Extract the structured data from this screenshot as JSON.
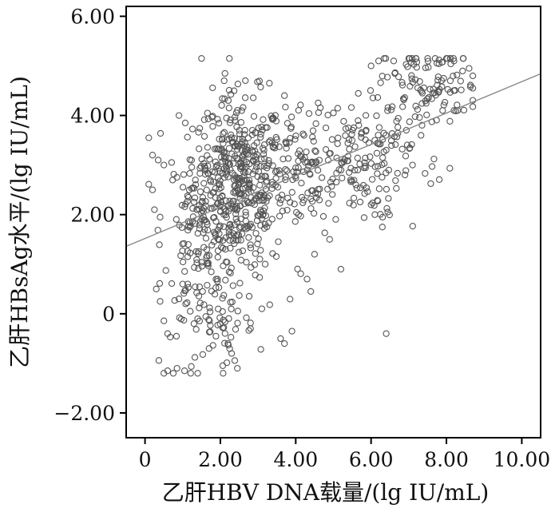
{
  "chart_data": {
    "type": "scatter",
    "title": "",
    "xlabel": "乙肝HBV DNA载量/(lg IU/mL)",
    "ylabel": "乙肝HBsAg水平/(lg IU/mL)",
    "xlim": [
      -0.5,
      10.5
    ],
    "ylim": [
      -2.5,
      6.2
    ],
    "x_ticks": [
      0,
      2,
      4,
      6,
      8,
      10
    ],
    "x_tick_labels": [
      "0",
      "2.00",
      "4.00",
      "6.00",
      "8.00",
      "10.00"
    ],
    "y_ticks": [
      -2,
      0,
      2,
      4,
      6
    ],
    "y_tick_labels": [
      "−2.00",
      "0",
      "2.00",
      "4.00",
      "6.00"
    ],
    "grid": false,
    "legend": "none",
    "marker": "open-circle",
    "colors": {
      "marker": "#555555",
      "fit_line": "#888888",
      "axis": "#000000"
    },
    "fit_line": {
      "x": [
        -0.5,
        10.5
      ],
      "y": [
        1.36,
        4.84
      ]
    },
    "clusters": [
      {
        "cx": 2.5,
        "cy": 2.6,
        "sx": 0.6,
        "sy": 0.9,
        "n": 420
      },
      {
        "cx": 1.5,
        "cy": 1.6,
        "sx": 0.5,
        "sy": 1.0,
        "n": 160
      },
      {
        "cx": 4.2,
        "cy": 2.9,
        "sx": 0.8,
        "sy": 0.7,
        "n": 140
      },
      {
        "cx": 5.6,
        "cy": 3.1,
        "sx": 0.6,
        "sy": 0.6,
        "n": 90
      },
      {
        "cx": 7.6,
        "cy": 4.6,
        "sx": 0.6,
        "sy": 0.45,
        "n": 90
      },
      {
        "cx": 6.8,
        "cy": 3.6,
        "sx": 0.6,
        "sy": 0.7,
        "n": 50
      },
      {
        "cx": 2.0,
        "cy": -0.3,
        "sx": 0.5,
        "sy": 0.4,
        "n": 40
      }
    ],
    "points": [
      [
        0.5,
        -1.2
      ],
      [
        0.6,
        -1.15
      ],
      [
        0.75,
        -1.2
      ],
      [
        0.85,
        -1.1
      ],
      [
        1.05,
        -1.15
      ],
      [
        1.4,
        -1.2
      ],
      [
        2.45,
        -1.1
      ],
      [
        0.3,
        0.5
      ],
      [
        0.4,
        0.25
      ],
      [
        0.6,
        -0.4
      ],
      [
        1.5,
        5.15
      ],
      [
        2.1,
        4.7
      ],
      [
        3.3,
        4.65
      ],
      [
        3.7,
        4.4
      ],
      [
        6.0,
        5.0
      ],
      [
        6.2,
        5.1
      ],
      [
        6.6,
        5.1
      ],
      [
        7.0,
        5.15
      ],
      [
        7.5,
        5.15
      ],
      [
        7.7,
        5.15
      ],
      [
        8.0,
        5.15
      ],
      [
        8.2,
        5.1
      ],
      [
        8.6,
        4.95
      ],
      [
        8.7,
        4.8
      ],
      [
        8.7,
        4.55
      ],
      [
        6.4,
        -0.4
      ],
      [
        5.2,
        0.9
      ],
      [
        4.9,
        1.5
      ],
      [
        4.3,
        0.7
      ],
      [
        4.4,
        0.45
      ],
      [
        3.9,
        -0.35
      ],
      [
        3.6,
        -0.5
      ],
      [
        3.7,
        -0.6
      ],
      [
        2.2,
        -0.6
      ],
      [
        2.3,
        -0.8
      ],
      [
        1.7,
        -0.7
      ],
      [
        0.1,
        3.55
      ],
      [
        0.2,
        3.2
      ],
      [
        0.2,
        2.5
      ],
      [
        0.25,
        2.1
      ],
      [
        0.35,
        3.1
      ],
      [
        0.4,
        1.95
      ],
      [
        0.5,
        3.0
      ],
      [
        0.9,
        4.0
      ],
      [
        4.8,
        3.75
      ],
      [
        5.0,
        4.05
      ],
      [
        5.4,
        3.75
      ],
      [
        4.5,
        1.2
      ],
      [
        3.1,
        0.1
      ],
      [
        2.8,
        -0.3
      ],
      [
        1.2,
        0.05
      ],
      [
        1.3,
        -0.2
      ],
      [
        0.9,
        0.3
      ],
      [
        1.0,
        0.6
      ],
      [
        6.0,
        2.2
      ],
      [
        6.1,
        2.0
      ],
      [
        6.3,
        1.75
      ],
      [
        6.1,
        3.5
      ],
      [
        6.4,
        3.3
      ],
      [
        6.9,
        2.8
      ],
      [
        7.1,
        3.0
      ],
      [
        7.9,
        4.1
      ],
      [
        8.2,
        4.1
      ]
    ]
  }
}
